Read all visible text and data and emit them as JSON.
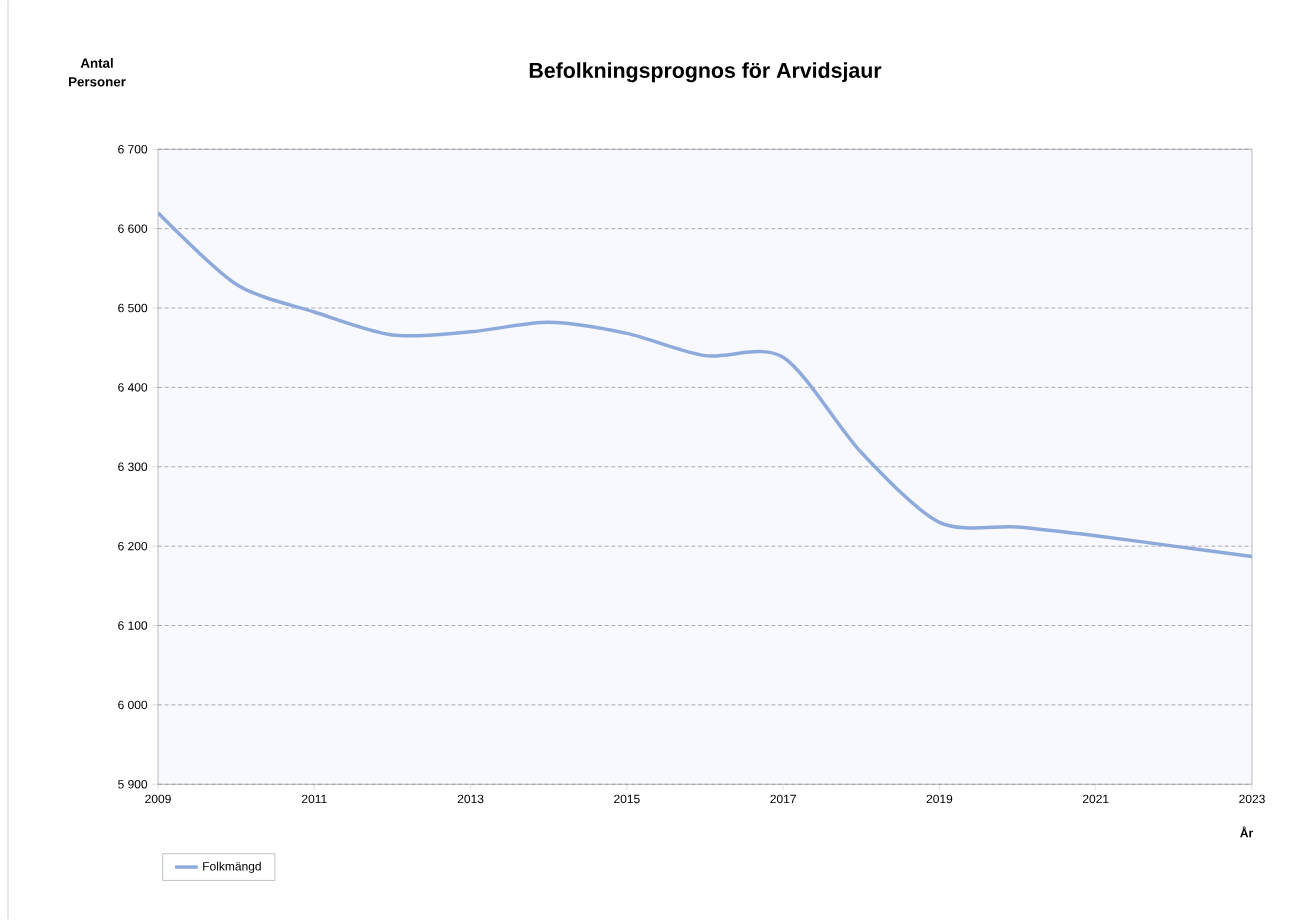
{
  "chart_data": {
    "type": "line",
    "title": "Befolkningsprognos för Arvidsjaur",
    "ylabel": "Antal Personer",
    "xlabel": "År",
    "x": [
      2009,
      2010,
      2011,
      2012,
      2013,
      2014,
      2015,
      2016,
      2017,
      2018,
      2019,
      2020,
      2021,
      2022,
      2023
    ],
    "series": [
      {
        "name": "Folkmängd",
        "color": "#8eaadb",
        "values": [
          6620,
          6530,
          6495,
          6466,
          6470,
          6482,
          6468,
          6440,
          6438,
          6318,
          6230,
          6224,
          6213,
          6200,
          6187
        ]
      }
    ],
    "xlim": [
      2009,
      2023
    ],
    "xticks": [
      2009,
      2011,
      2013,
      2015,
      2017,
      2019,
      2021,
      2023
    ],
    "ylim": [
      5900,
      6700
    ],
    "yticks": [
      {
        "value": 5900,
        "label": "5 900"
      },
      {
        "value": 6000,
        "label": "6 000"
      },
      {
        "value": 6100,
        "label": "6 100"
      },
      {
        "value": 6200,
        "label": "6 200"
      },
      {
        "value": 6300,
        "label": "6 300"
      },
      {
        "value": 6400,
        "label": "6 400"
      },
      {
        "value": 6500,
        "label": "6 500"
      },
      {
        "value": 6600,
        "label": "6 600"
      },
      {
        "value": 6700,
        "label": "6 700"
      }
    ],
    "grid": "y",
    "legend": "bottom left",
    "marker": "none",
    "line_style": "solid"
  }
}
